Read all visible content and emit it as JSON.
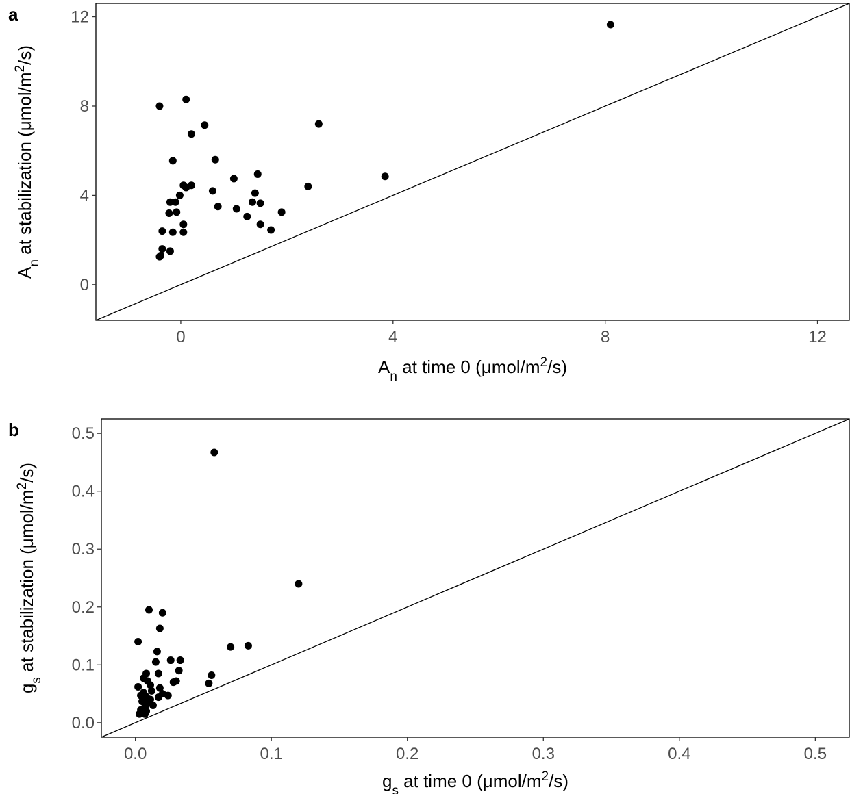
{
  "chart_data": [
    {
      "type": "scatter",
      "panel_label": "a",
      "xlim": [
        -1.6,
        12.6
      ],
      "ylim": [
        -1.6,
        12.6
      ],
      "x_ticks": [
        0,
        4,
        8,
        12
      ],
      "x_tick_labels": [
        "0",
        "4",
        "8",
        "12"
      ],
      "y_ticks": [
        0,
        4,
        8,
        12
      ],
      "y_tick_labels": [
        "0",
        "4",
        "8",
        "12"
      ],
      "reference_line": "y = x",
      "grid": false,
      "xlabel": {
        "main": "A",
        "sub": "n",
        "rest": " at time 0 (μmol/m",
        "sup": "2",
        "tail": "/s)"
      },
      "ylabel": {
        "main": "A",
        "sub": "n",
        "rest": " at stabilization (μmol/m",
        "sup": "2",
        "tail": "/s)"
      },
      "points": [
        {
          "x": 8.1,
          "y": 11.65
        },
        {
          "x": -0.4,
          "y": 8.0
        },
        {
          "x": 0.1,
          "y": 8.3
        },
        {
          "x": 0.45,
          "y": 7.15
        },
        {
          "x": 2.6,
          "y": 7.2
        },
        {
          "x": 0.2,
          "y": 6.75
        },
        {
          "x": -0.15,
          "y": 5.55
        },
        {
          "x": 0.65,
          "y": 5.6
        },
        {
          "x": 1.45,
          "y": 4.95
        },
        {
          "x": 3.85,
          "y": 4.85
        },
        {
          "x": 1.0,
          "y": 4.75
        },
        {
          "x": 0.05,
          "y": 4.45
        },
        {
          "x": 0.1,
          "y": 4.35
        },
        {
          "x": 0.2,
          "y": 4.45
        },
        {
          "x": 2.4,
          "y": 4.4
        },
        {
          "x": 0.6,
          "y": 4.2
        },
        {
          "x": 1.4,
          "y": 4.1
        },
        {
          "x": -0.02,
          "y": 4.0
        },
        {
          "x": -0.2,
          "y": 3.7
        },
        {
          "x": -0.1,
          "y": 3.7
        },
        {
          "x": 1.35,
          "y": 3.7
        },
        {
          "x": 1.5,
          "y": 3.65
        },
        {
          "x": 0.7,
          "y": 3.5
        },
        {
          "x": 1.05,
          "y": 3.4
        },
        {
          "x": -0.22,
          "y": 3.2
        },
        {
          "x": -0.08,
          "y": 3.25
        },
        {
          "x": 1.9,
          "y": 3.25
        },
        {
          "x": 1.25,
          "y": 3.05
        },
        {
          "x": 0.05,
          "y": 2.7
        },
        {
          "x": 1.5,
          "y": 2.7
        },
        {
          "x": -0.35,
          "y": 2.4
        },
        {
          "x": -0.15,
          "y": 2.35
        },
        {
          "x": 0.05,
          "y": 2.35
        },
        {
          "x": 1.7,
          "y": 2.45
        },
        {
          "x": -0.35,
          "y": 1.6
        },
        {
          "x": -0.2,
          "y": 1.5
        },
        {
          "x": -0.38,
          "y": 1.3
        },
        {
          "x": -0.4,
          "y": 1.25
        }
      ]
    },
    {
      "type": "scatter",
      "panel_label": "b",
      "xlim": [
        -0.025,
        0.525
      ],
      "ylim": [
        -0.025,
        0.525
      ],
      "x_ticks": [
        0.0,
        0.1,
        0.2,
        0.3,
        0.4,
        0.5
      ],
      "x_tick_labels": [
        "0.0",
        "0.1",
        "0.2",
        "0.3",
        "0.4",
        "0.5"
      ],
      "y_ticks": [
        0.0,
        0.1,
        0.2,
        0.3,
        0.4,
        0.5
      ],
      "y_tick_labels": [
        "0.0",
        "0.1",
        "0.2",
        "0.3",
        "0.4",
        "0.5"
      ],
      "reference_line": "y = x",
      "grid": false,
      "xlabel": {
        "main": "g",
        "sub": "s",
        "rest": " at time 0 (μmol/m",
        "sup": "2",
        "tail": "/s)"
      },
      "ylabel": {
        "main": "g",
        "sub": "s",
        "rest": " at stabilization (μmol/m",
        "sup": "2",
        "tail": "/s)"
      },
      "points": [
        {
          "x": 0.058,
          "y": 0.467
        },
        {
          "x": 0.12,
          "y": 0.24
        },
        {
          "x": 0.01,
          "y": 0.195
        },
        {
          "x": 0.02,
          "y": 0.19
        },
        {
          "x": 0.018,
          "y": 0.163
        },
        {
          "x": 0.002,
          "y": 0.14
        },
        {
          "x": 0.083,
          "y": 0.133
        },
        {
          "x": 0.07,
          "y": 0.131
        },
        {
          "x": 0.016,
          "y": 0.123
        },
        {
          "x": 0.026,
          "y": 0.108
        },
        {
          "x": 0.033,
          "y": 0.108
        },
        {
          "x": 0.015,
          "y": 0.105
        },
        {
          "x": 0.032,
          "y": 0.09
        },
        {
          "x": 0.008,
          "y": 0.085
        },
        {
          "x": 0.017,
          "y": 0.085
        },
        {
          "x": 0.056,
          "y": 0.082
        },
        {
          "x": 0.006,
          "y": 0.077
        },
        {
          "x": 0.009,
          "y": 0.072
        },
        {
          "x": 0.028,
          "y": 0.07
        },
        {
          "x": 0.03,
          "y": 0.072
        },
        {
          "x": 0.054,
          "y": 0.068
        },
        {
          "x": 0.011,
          "y": 0.065
        },
        {
          "x": 0.002,
          "y": 0.062
        },
        {
          "x": 0.018,
          "y": 0.06
        },
        {
          "x": 0.012,
          "y": 0.055
        },
        {
          "x": 0.006,
          "y": 0.052
        },
        {
          "x": 0.02,
          "y": 0.05
        },
        {
          "x": 0.004,
          "y": 0.047
        },
        {
          "x": 0.008,
          "y": 0.045
        },
        {
          "x": 0.024,
          "y": 0.047
        },
        {
          "x": 0.017,
          "y": 0.044
        },
        {
          "x": 0.011,
          "y": 0.04
        },
        {
          "x": 0.005,
          "y": 0.037
        },
        {
          "x": 0.009,
          "y": 0.034
        },
        {
          "x": 0.013,
          "y": 0.03
        },
        {
          "x": 0.007,
          "y": 0.027
        },
        {
          "x": 0.004,
          "y": 0.022
        },
        {
          "x": 0.008,
          "y": 0.02
        },
        {
          "x": 0.003,
          "y": 0.015
        },
        {
          "x": 0.007,
          "y": 0.015
        }
      ]
    }
  ]
}
